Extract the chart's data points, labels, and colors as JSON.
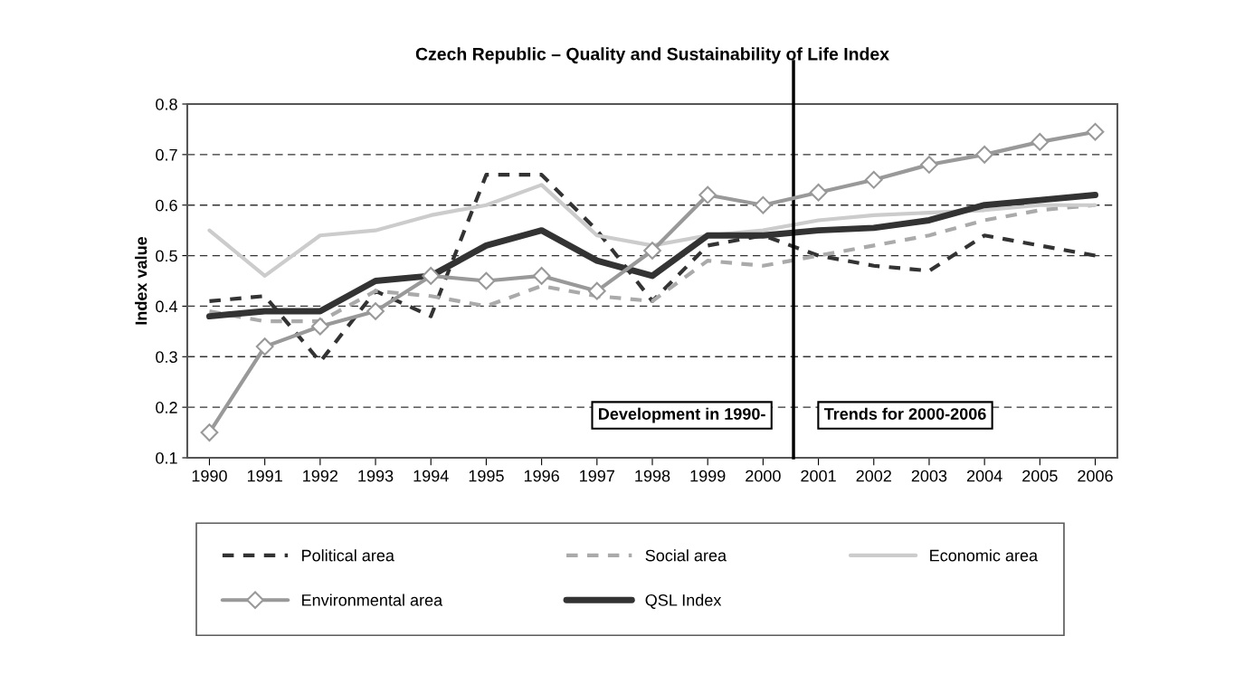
{
  "chart_data": {
    "type": "line",
    "title": "Czech Republic – Quality and Sustainability of Life Index",
    "ylabel": "Index value",
    "x": [
      1990,
      1991,
      1992,
      1993,
      1994,
      1995,
      1996,
      1997,
      1998,
      1999,
      2000,
      2001,
      2002,
      2003,
      2004,
      2005,
      2006
    ],
    "xlim": [
      1989.6,
      2006.4
    ],
    "xticks": [
      1990,
      1991,
      1992,
      1993,
      1994,
      1995,
      1996,
      1997,
      1998,
      1999,
      2000,
      2001,
      2002,
      2003,
      2004,
      2005,
      2006
    ],
    "ylim": [
      0.1,
      0.8
    ],
    "yticks": [
      0.1,
      0.2,
      0.3,
      0.4,
      0.5,
      0.6,
      0.7,
      0.8
    ],
    "grid": "y",
    "legend": "bottom",
    "series": [
      {
        "name": "Political area",
        "color": "#333333",
        "line_style": "dashed",
        "values": [
          0.41,
          0.42,
          0.29,
          0.43,
          0.38,
          0.66,
          0.66,
          0.55,
          0.41,
          0.52,
          0.54,
          0.5,
          0.48,
          0.47,
          0.54,
          0.52,
          0.5
        ]
      },
      {
        "name": "Social area",
        "color": "#aaaaaa",
        "line_style": "dashed",
        "values": [
          0.39,
          0.37,
          0.37,
          0.43,
          0.42,
          0.4,
          0.44,
          0.42,
          0.41,
          0.49,
          0.48,
          0.5,
          0.52,
          0.54,
          0.57,
          0.59,
          0.6
        ]
      },
      {
        "name": "Economic area",
        "color": "#cccccc",
        "line_style": "solid",
        "values": [
          0.55,
          0.46,
          0.54,
          0.55,
          0.58,
          0.6,
          0.64,
          0.54,
          0.52,
          0.54,
          0.55,
          0.57,
          0.58,
          0.585,
          0.59,
          0.6,
          0.6
        ]
      },
      {
        "name": "Environmental area",
        "color": "#999999",
        "line_style": "solid",
        "marker": "diamond",
        "values": [
          0.15,
          0.32,
          0.36,
          0.39,
          0.46,
          0.45,
          0.46,
          0.43,
          0.51,
          0.62,
          0.6,
          0.625,
          0.65,
          0.68,
          0.7,
          0.725,
          0.745
        ]
      },
      {
        "name": "QSL Index",
        "color": "#333333",
        "line_style": "solid",
        "values": [
          0.38,
          0.39,
          0.39,
          0.45,
          0.46,
          0.52,
          0.55,
          0.49,
          0.46,
          0.54,
          0.54,
          0.55,
          0.555,
          0.57,
          0.6,
          0.61,
          0.62
        ]
      }
    ],
    "ref_lines": [
      {
        "axis": "x",
        "value": 2000.55,
        "color": "#000000",
        "line_style": "solid"
      }
    ],
    "annotations": [
      "Development in 1990-",
      "Trends for 2000-2006"
    ]
  }
}
